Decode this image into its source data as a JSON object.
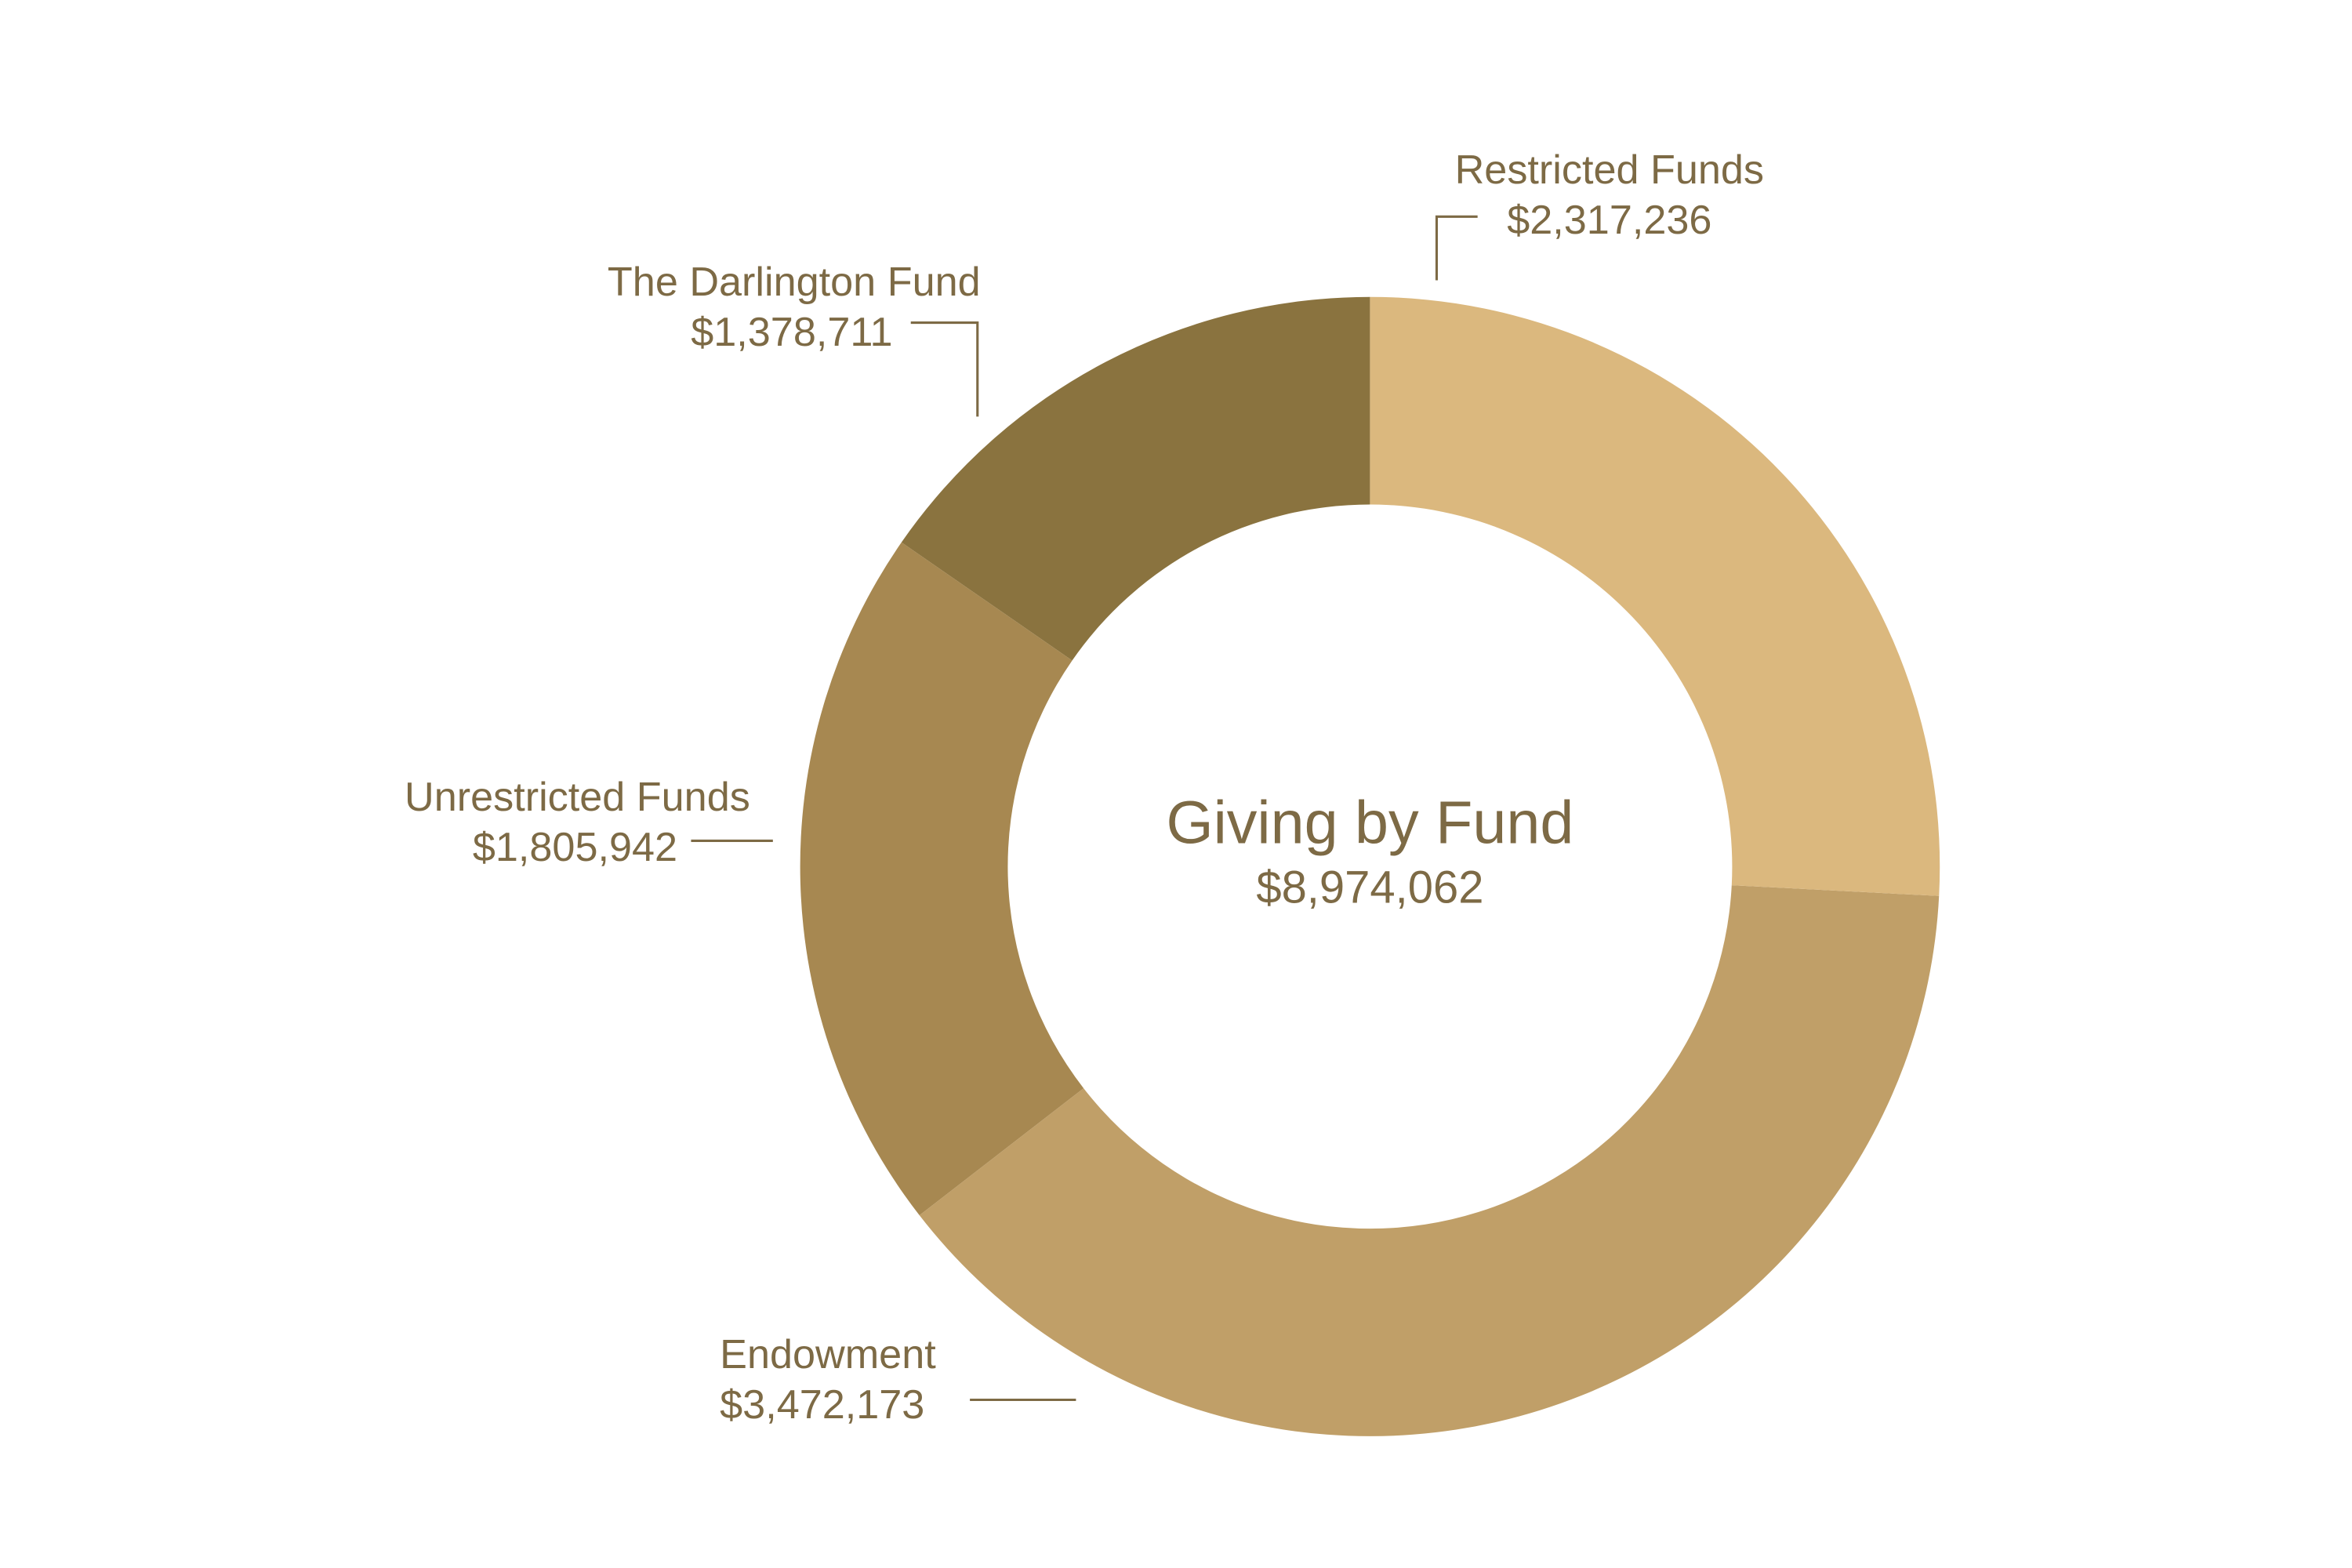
{
  "chart_data": {
    "type": "pie",
    "title": "Giving by Fund",
    "total": 8974062,
    "total_label": "$8,974,062",
    "categories": [
      "Restricted Funds",
      "Endowment",
      "Unrestricted Funds",
      "The Darlington Fund"
    ],
    "values": [
      2317236,
      3472173,
      1805942,
      1378711
    ],
    "value_labels": [
      "$2,317,236",
      "$3,472,173",
      "$1,805,942",
      "$1,378,711"
    ],
    "colors": [
      "#dbb87e",
      "#c09f68",
      "#a78851",
      "#8a733f"
    ]
  }
}
